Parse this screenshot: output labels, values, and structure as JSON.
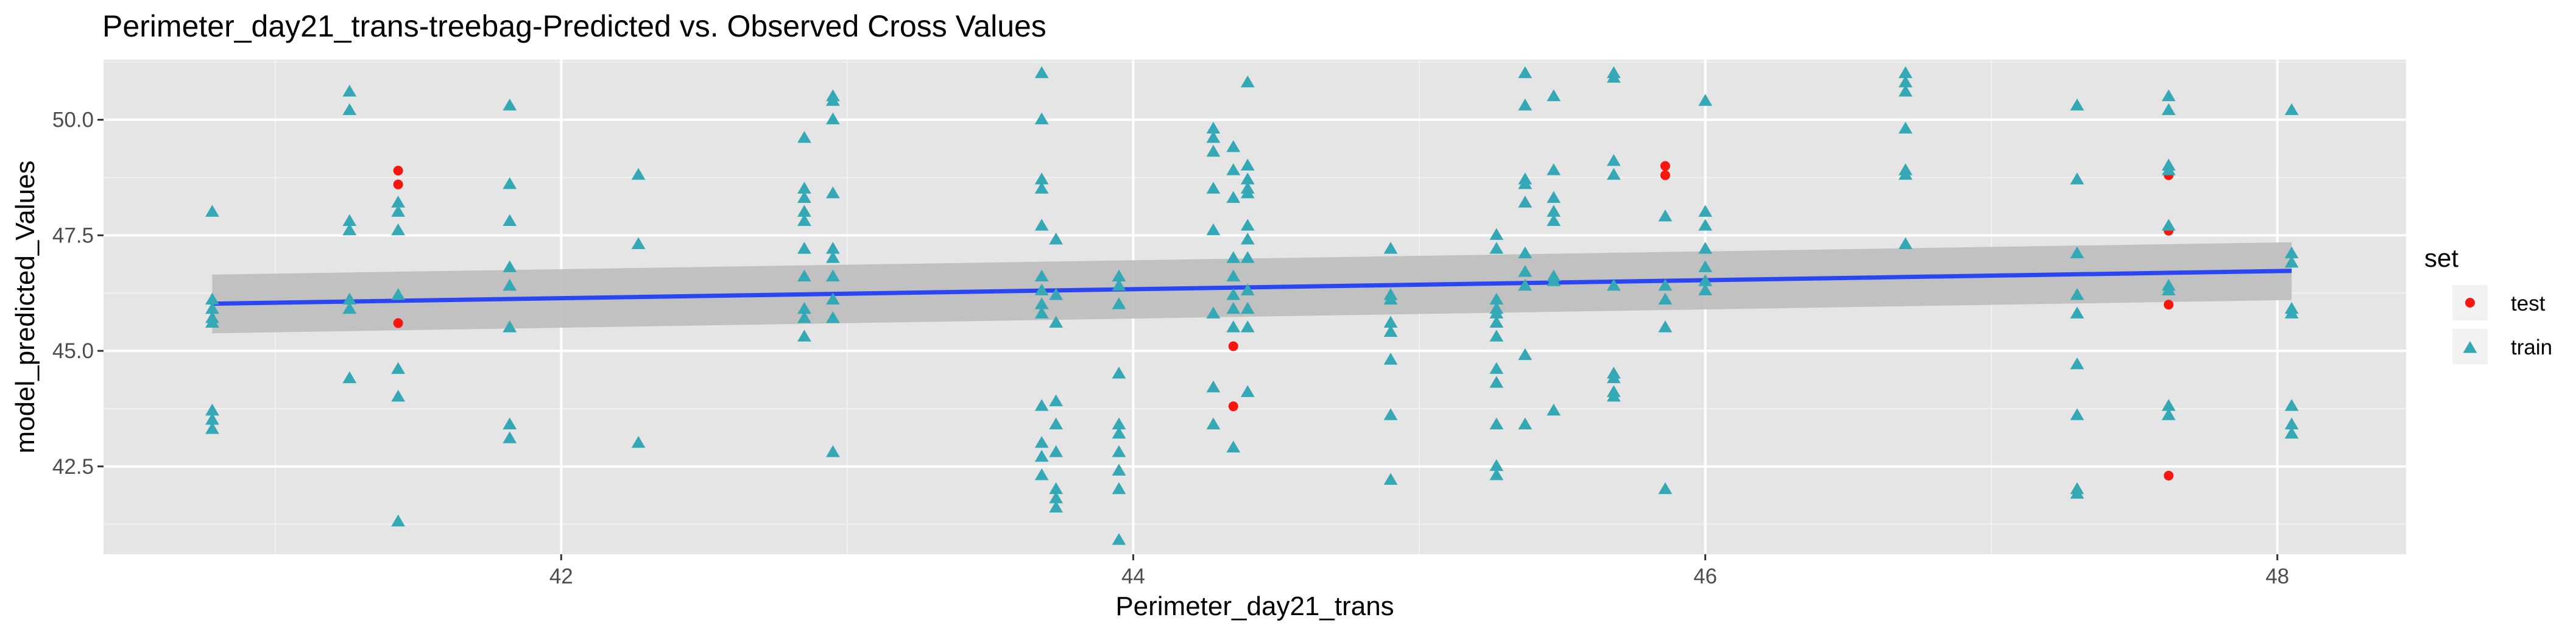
{
  "chart_data": {
    "type": "scatter",
    "title": "Perimeter_day21_trans-treebag-Predicted vs. Observed Cross Values",
    "xlabel": "Perimeter_day21_trans",
    "ylabel": "model_predicted_Values",
    "xlim": [
      40.4,
      48.45
    ],
    "ylim": [
      40.6,
      51.3
    ],
    "x_ticks": [
      42,
      44,
      46,
      48
    ],
    "x_tick_labels": [
      "42",
      "44",
      "46",
      "48"
    ],
    "y_ticks": [
      42.5,
      45.0,
      47.5,
      50.0
    ],
    "y_tick_labels": [
      "42.5",
      "45.0",
      "47.5",
      "50.0"
    ],
    "grid": true,
    "legend": {
      "title": "set",
      "position": "right",
      "entries": [
        "test",
        "train"
      ]
    },
    "colors": {
      "test": "#F8160E",
      "train": "#35A8B6",
      "trend": "#2A45F2",
      "band": "#BDBDBD",
      "panel": "#E5E5E5"
    },
    "trend_line": {
      "method": "lm",
      "x": [
        40.78,
        48.05
      ],
      "y": [
        46.02,
        46.73
      ],
      "ci_lower": [
        45.38,
        46.1
      ],
      "ci_upper": [
        46.65,
        47.35
      ]
    },
    "series": [
      {
        "name": "test",
        "marker": "circle",
        "points": [
          [
            41.43,
            48.9
          ],
          [
            41.43,
            48.6
          ],
          [
            41.43,
            45.6
          ],
          [
            44.35,
            45.1
          ],
          [
            44.35,
            43.8
          ],
          [
            45.86,
            49.0
          ],
          [
            45.86,
            48.8
          ],
          [
            47.62,
            48.8
          ],
          [
            47.62,
            47.6
          ],
          [
            47.62,
            46.0
          ],
          [
            47.62,
            42.3
          ]
        ]
      },
      {
        "name": "train",
        "marker": "triangle",
        "points": [
          [
            40.78,
            48.0
          ],
          [
            40.78,
            46.1
          ],
          [
            40.78,
            45.9
          ],
          [
            40.78,
            45.7
          ],
          [
            40.78,
            45.6
          ],
          [
            40.78,
            43.7
          ],
          [
            40.78,
            43.5
          ],
          [
            40.78,
            43.3
          ],
          [
            41.26,
            50.6
          ],
          [
            41.26,
            50.2
          ],
          [
            41.26,
            47.8
          ],
          [
            41.26,
            47.6
          ],
          [
            41.26,
            46.1
          ],
          [
            41.26,
            45.9
          ],
          [
            41.26,
            44.4
          ],
          [
            41.43,
            48.2
          ],
          [
            41.43,
            48.0
          ],
          [
            41.43,
            47.6
          ],
          [
            41.43,
            46.2
          ],
          [
            41.43,
            44.6
          ],
          [
            41.43,
            44.0
          ],
          [
            41.43,
            41.3
          ],
          [
            41.82,
            50.3
          ],
          [
            41.82,
            48.6
          ],
          [
            41.82,
            47.8
          ],
          [
            41.82,
            46.8
          ],
          [
            41.82,
            46.4
          ],
          [
            41.82,
            45.5
          ],
          [
            41.82,
            43.4
          ],
          [
            41.82,
            43.1
          ],
          [
            42.27,
            48.8
          ],
          [
            42.27,
            47.3
          ],
          [
            42.27,
            43.0
          ],
          [
            42.85,
            49.6
          ],
          [
            42.85,
            48.5
          ],
          [
            42.85,
            48.3
          ],
          [
            42.85,
            48.0
          ],
          [
            42.85,
            47.8
          ],
          [
            42.85,
            47.2
          ],
          [
            42.85,
            46.6
          ],
          [
            42.85,
            45.9
          ],
          [
            42.85,
            45.7
          ],
          [
            42.85,
            45.3
          ],
          [
            42.95,
            50.5
          ],
          [
            42.95,
            50.4
          ],
          [
            42.95,
            50.0
          ],
          [
            42.95,
            48.4
          ],
          [
            42.95,
            47.2
          ],
          [
            42.95,
            47.0
          ],
          [
            42.95,
            46.6
          ],
          [
            42.95,
            46.1
          ],
          [
            42.95,
            45.7
          ],
          [
            42.95,
            42.8
          ],
          [
            43.68,
            51.0
          ],
          [
            43.68,
            50.0
          ],
          [
            43.68,
            48.7
          ],
          [
            43.68,
            48.5
          ],
          [
            43.68,
            47.7
          ],
          [
            43.68,
            46.6
          ],
          [
            43.68,
            46.3
          ],
          [
            43.68,
            46.0
          ],
          [
            43.68,
            45.8
          ],
          [
            43.68,
            43.8
          ],
          [
            43.68,
            43.0
          ],
          [
            43.68,
            42.7
          ],
          [
            43.68,
            42.3
          ],
          [
            43.73,
            47.4
          ],
          [
            43.73,
            46.2
          ],
          [
            43.73,
            45.6
          ],
          [
            43.73,
            43.9
          ],
          [
            43.73,
            43.4
          ],
          [
            43.73,
            42.8
          ],
          [
            43.73,
            42.0
          ],
          [
            43.73,
            41.8
          ],
          [
            43.73,
            41.6
          ],
          [
            43.95,
            46.6
          ],
          [
            43.95,
            46.4
          ],
          [
            43.95,
            46.0
          ],
          [
            43.95,
            44.5
          ],
          [
            43.95,
            43.4
          ],
          [
            43.95,
            43.2
          ],
          [
            43.95,
            42.8
          ],
          [
            43.95,
            42.4
          ],
          [
            43.95,
            42.0
          ],
          [
            43.95,
            40.9
          ],
          [
            44.28,
            49.8
          ],
          [
            44.28,
            49.6
          ],
          [
            44.28,
            49.3
          ],
          [
            44.28,
            48.5
          ],
          [
            44.28,
            47.6
          ],
          [
            44.28,
            45.8
          ],
          [
            44.28,
            44.2
          ],
          [
            44.28,
            43.4
          ],
          [
            44.35,
            49.4
          ],
          [
            44.35,
            48.9
          ],
          [
            44.35,
            48.3
          ],
          [
            44.35,
            47.0
          ],
          [
            44.35,
            46.6
          ],
          [
            44.35,
            46.2
          ],
          [
            44.35,
            45.9
          ],
          [
            44.35,
            45.5
          ],
          [
            44.35,
            42.9
          ],
          [
            44.4,
            50.8
          ],
          [
            44.4,
            49.0
          ],
          [
            44.4,
            48.7
          ],
          [
            44.4,
            48.5
          ],
          [
            44.4,
            48.4
          ],
          [
            44.4,
            47.7
          ],
          [
            44.4,
            47.4
          ],
          [
            44.4,
            47.0
          ],
          [
            44.4,
            46.3
          ],
          [
            44.4,
            45.9
          ],
          [
            44.4,
            45.5
          ],
          [
            44.4,
            44.1
          ],
          [
            44.9,
            47.2
          ],
          [
            44.9,
            46.2
          ],
          [
            44.9,
            46.1
          ],
          [
            44.9,
            45.6
          ],
          [
            44.9,
            45.4
          ],
          [
            44.9,
            44.8
          ],
          [
            44.9,
            43.6
          ],
          [
            44.9,
            42.2
          ],
          [
            45.27,
            47.5
          ],
          [
            45.27,
            47.2
          ],
          [
            45.27,
            46.1
          ],
          [
            45.27,
            45.9
          ],
          [
            45.27,
            45.8
          ],
          [
            45.27,
            45.6
          ],
          [
            45.27,
            45.3
          ],
          [
            45.27,
            44.6
          ],
          [
            45.27,
            44.3
          ],
          [
            45.27,
            43.4
          ],
          [
            45.27,
            42.5
          ],
          [
            45.27,
            42.3
          ],
          [
            45.37,
            51.0
          ],
          [
            45.37,
            50.3
          ],
          [
            45.37,
            48.7
          ],
          [
            45.37,
            48.6
          ],
          [
            45.37,
            48.2
          ],
          [
            45.37,
            47.1
          ],
          [
            45.37,
            46.7
          ],
          [
            45.37,
            46.4
          ],
          [
            45.37,
            44.9
          ],
          [
            45.37,
            43.4
          ],
          [
            45.47,
            50.5
          ],
          [
            45.47,
            48.9
          ],
          [
            45.47,
            48.3
          ],
          [
            45.47,
            48.0
          ],
          [
            45.47,
            47.8
          ],
          [
            45.47,
            46.6
          ],
          [
            45.47,
            46.5
          ],
          [
            45.47,
            43.7
          ],
          [
            45.68,
            51.0
          ],
          [
            45.68,
            50.9
          ],
          [
            45.68,
            49.1
          ],
          [
            45.68,
            48.8
          ],
          [
            45.68,
            46.4
          ],
          [
            45.68,
            44.5
          ],
          [
            45.68,
            44.4
          ],
          [
            45.68,
            44.1
          ],
          [
            45.68,
            44.0
          ],
          [
            45.86,
            47.9
          ],
          [
            45.86,
            46.4
          ],
          [
            45.86,
            46.1
          ],
          [
            45.86,
            45.5
          ],
          [
            45.86,
            42.0
          ],
          [
            46.0,
            50.4
          ],
          [
            46.0,
            48.0
          ],
          [
            46.0,
            47.7
          ],
          [
            46.0,
            47.2
          ],
          [
            46.0,
            46.8
          ],
          [
            46.0,
            46.5
          ],
          [
            46.0,
            46.3
          ],
          [
            46.7,
            51.0
          ],
          [
            46.7,
            50.8
          ],
          [
            46.7,
            50.6
          ],
          [
            46.7,
            49.8
          ],
          [
            46.7,
            48.9
          ],
          [
            46.7,
            48.8
          ],
          [
            46.7,
            47.3
          ],
          [
            47.3,
            50.3
          ],
          [
            47.3,
            48.7
          ],
          [
            47.3,
            47.1
          ],
          [
            47.3,
            46.2
          ],
          [
            47.3,
            45.8
          ],
          [
            47.3,
            44.7
          ],
          [
            47.3,
            43.6
          ],
          [
            47.3,
            42.0
          ],
          [
            47.3,
            41.9
          ],
          [
            47.62,
            50.5
          ],
          [
            47.62,
            50.2
          ],
          [
            47.62,
            49.0
          ],
          [
            47.62,
            48.9
          ],
          [
            47.62,
            47.7
          ],
          [
            47.62,
            46.4
          ],
          [
            47.62,
            46.3
          ],
          [
            47.62,
            43.8
          ],
          [
            47.62,
            43.6
          ],
          [
            48.05,
            50.2
          ],
          [
            48.05,
            47.1
          ],
          [
            48.05,
            46.9
          ],
          [
            48.05,
            45.9
          ],
          [
            48.05,
            45.8
          ],
          [
            48.05,
            43.8
          ],
          [
            48.05,
            43.4
          ],
          [
            48.05,
            43.2
          ]
        ]
      }
    ]
  }
}
